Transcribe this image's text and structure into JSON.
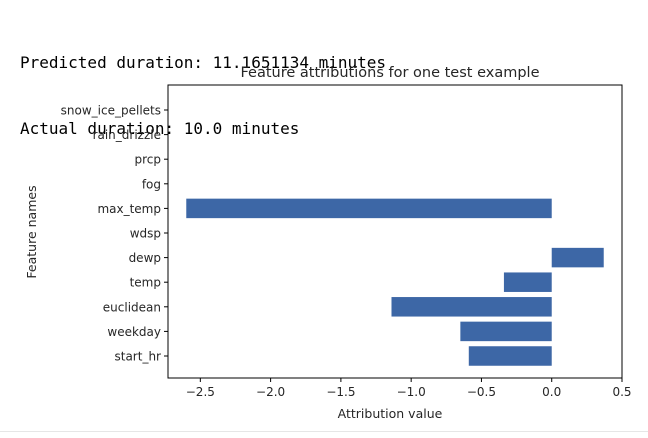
{
  "output": {
    "line1": "Predicted duration: 11.1651134 minutes",
    "line2": "Actual duration: 10.0 minutes"
  },
  "colors": {
    "bar": "#3d67a6",
    "axis": "#000000",
    "text": "#262626"
  },
  "chart_data": {
    "type": "bar",
    "orientation": "horizontal",
    "title": "Feature attributions for one test example",
    "xlabel": "Attribution value",
    "ylabel": "Feature names",
    "categories": [
      "snow_ice_pellets",
      "rain_drizzle",
      "prcp",
      "fog",
      "max_temp",
      "wdsp",
      "dewp",
      "temp",
      "euclidean",
      "weekday",
      "start_hr"
    ],
    "values": [
      0,
      0,
      0,
      0,
      -2.6,
      0,
      0.37,
      -0.34,
      -1.14,
      -0.65,
      -0.59
    ],
    "xlim": [
      -2.73,
      0.5
    ],
    "xticks": [
      -2.5,
      -2.0,
      -1.5,
      -1.0,
      -0.5,
      0.0,
      0.5
    ],
    "xtick_labels": [
      "−2.5",
      "−2.0",
      "−1.5",
      "−1.0",
      "−0.5",
      "0.0",
      "0.5"
    ],
    "grid": false,
    "legend": false
  }
}
